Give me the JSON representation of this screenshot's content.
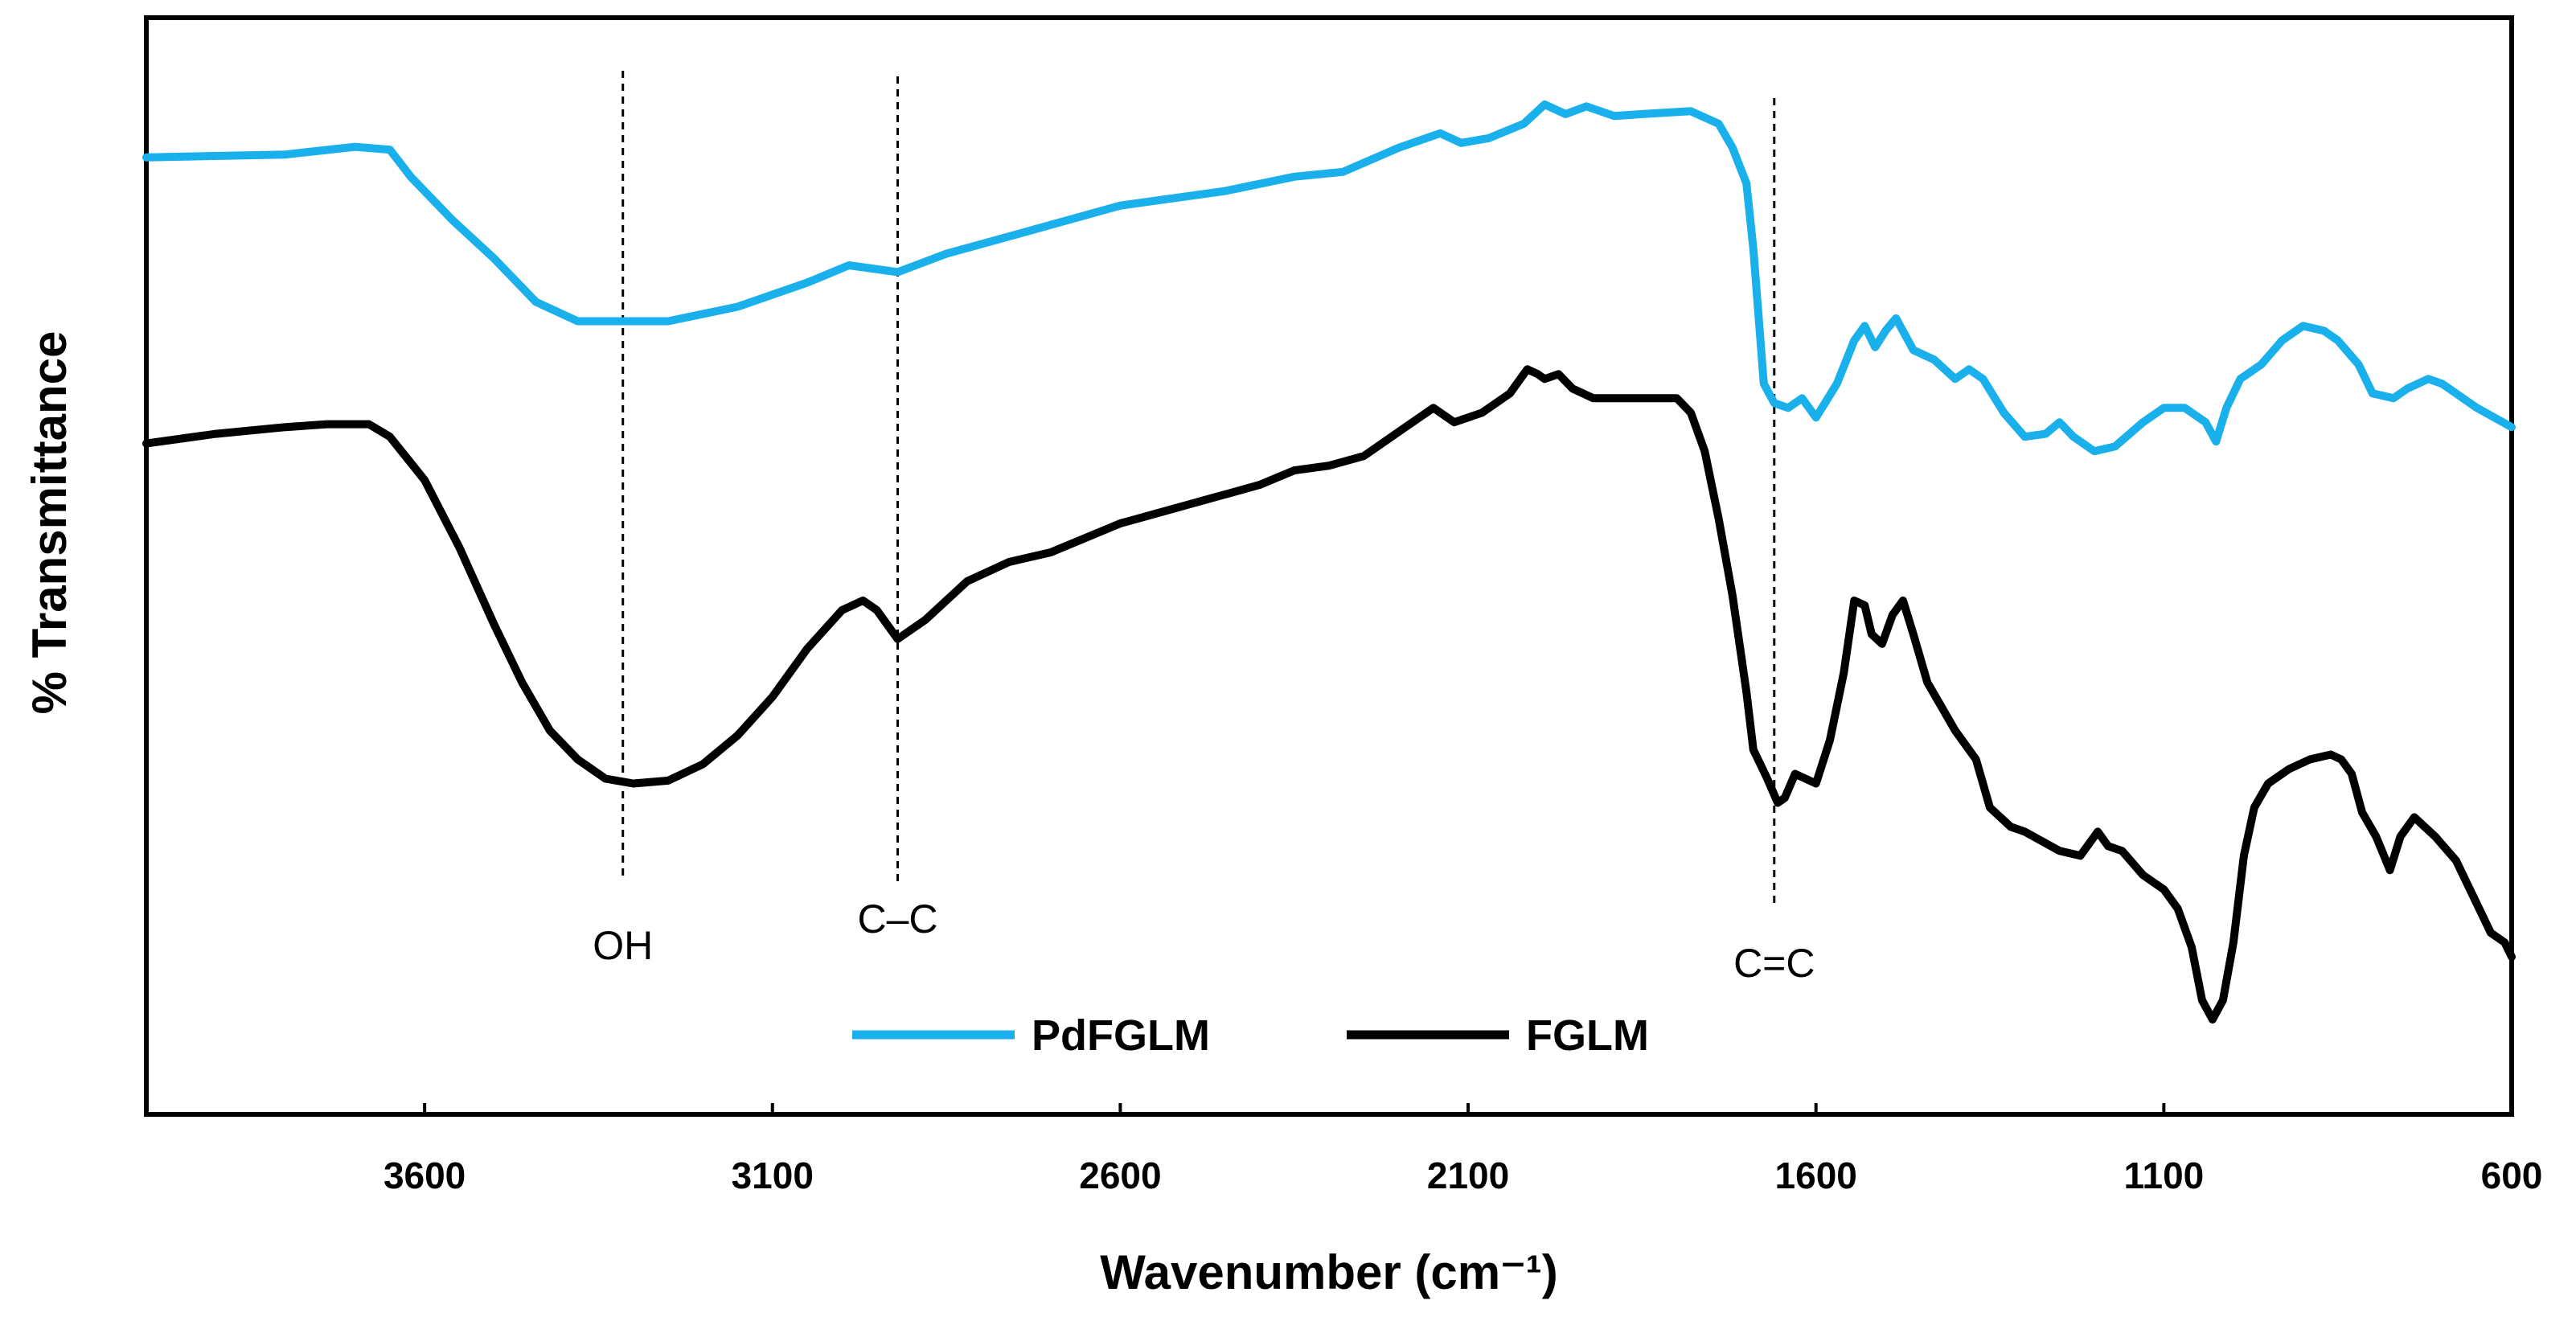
{
  "chart_data": {
    "type": "line",
    "title": "",
    "xlabel": "Wavenumber (cm⁻¹)",
    "ylabel": "% Transmittance",
    "xlim": [
      4000,
      600
    ],
    "x_reversed": true,
    "ylim": [
      0,
      100
    ],
    "y_ticks_shown": false,
    "grid": false,
    "x_ticks": [
      3600,
      3100,
      2600,
      2100,
      1600,
      1100,
      600
    ],
    "x_tick_labels": [
      "3600",
      "3100",
      "2600",
      "2100",
      "1600",
      "1100",
      "600"
    ],
    "legend": {
      "placement": "bottom-center",
      "entries": [
        "PdFGLM",
        "FGLM"
      ]
    },
    "annotations": [
      {
        "label": "OH",
        "x": 3315
      },
      {
        "label": "C–C",
        "x": 2920
      },
      {
        "label": "C=C",
        "x": 1660
      }
    ],
    "series": [
      {
        "name": "PdFGLM",
        "color": "#1ab0ec",
        "points": [
          [
            4000,
            89.5
          ],
          [
            3800,
            89.8
          ],
          [
            3700,
            90.6
          ],
          [
            3650,
            90.3
          ],
          [
            3620,
            87.5
          ],
          [
            3560,
            83
          ],
          [
            3500,
            79
          ],
          [
            3440,
            74.5
          ],
          [
            3380,
            72.5
          ],
          [
            3300,
            72.5
          ],
          [
            3250,
            72.5
          ],
          [
            3150,
            74
          ],
          [
            3050,
            76.5
          ],
          [
            2990,
            78.3
          ],
          [
            2920,
            77.6
          ],
          [
            2850,
            79.5
          ],
          [
            2700,
            82.5
          ],
          [
            2600,
            84.5
          ],
          [
            2450,
            86
          ],
          [
            2350,
            87.5
          ],
          [
            2280,
            88
          ],
          [
            2200,
            90.5
          ],
          [
            2140,
            92
          ],
          [
            2110,
            91
          ],
          [
            2070,
            91.5
          ],
          [
            2020,
            93
          ],
          [
            1990,
            95
          ],
          [
            1960,
            94
          ],
          [
            1930,
            94.8
          ],
          [
            1890,
            93.8
          ],
          [
            1850,
            94
          ],
          [
            1780,
            94.3
          ],
          [
            1740,
            93
          ],
          [
            1720,
            90.5
          ],
          [
            1700,
            86.8
          ],
          [
            1690,
            80
          ],
          [
            1675,
            66
          ],
          [
            1660,
            64
          ],
          [
            1640,
            63.5
          ],
          [
            1620,
            64.5
          ],
          [
            1600,
            62.5
          ],
          [
            1570,
            66
          ],
          [
            1545,
            70.5
          ],
          [
            1530,
            72
          ],
          [
            1515,
            69.8
          ],
          [
            1500,
            71.5
          ],
          [
            1485,
            72.8
          ],
          [
            1460,
            69.5
          ],
          [
            1430,
            68.5
          ],
          [
            1400,
            66.5
          ],
          [
            1380,
            67.5
          ],
          [
            1360,
            66.5
          ],
          [
            1330,
            63
          ],
          [
            1300,
            60.5
          ],
          [
            1270,
            60.8
          ],
          [
            1250,
            62
          ],
          [
            1230,
            60.5
          ],
          [
            1200,
            59
          ],
          [
            1170,
            59.5
          ],
          [
            1130,
            62
          ],
          [
            1100,
            63.5
          ],
          [
            1070,
            63.5
          ],
          [
            1040,
            62
          ],
          [
            1025,
            60
          ],
          [
            1010,
            63.5
          ],
          [
            990,
            66.5
          ],
          [
            960,
            68
          ],
          [
            930,
            70.5
          ],
          [
            900,
            72
          ],
          [
            870,
            71.5
          ],
          [
            850,
            70.5
          ],
          [
            820,
            68
          ],
          [
            800,
            65
          ],
          [
            770,
            64.5
          ],
          [
            750,
            65.5
          ],
          [
            720,
            66.5
          ],
          [
            700,
            66
          ],
          [
            650,
            63.5
          ],
          [
            600,
            61.5
          ]
        ]
      },
      {
        "name": "FGLM",
        "color": "#000000",
        "points": [
          [
            4000,
            59.8
          ],
          [
            3900,
            60.8
          ],
          [
            3800,
            61.5
          ],
          [
            3740,
            61.8
          ],
          [
            3680,
            61.8
          ],
          [
            3650,
            60.5
          ],
          [
            3600,
            56
          ],
          [
            3550,
            49
          ],
          [
            3500,
            41
          ],
          [
            3460,
            35
          ],
          [
            3420,
            30
          ],
          [
            3380,
            27
          ],
          [
            3340,
            25
          ],
          [
            3300,
            24.5
          ],
          [
            3250,
            24.8
          ],
          [
            3200,
            26.5
          ],
          [
            3150,
            29.5
          ],
          [
            3100,
            33.5
          ],
          [
            3050,
            38.5
          ],
          [
            3000,
            42.5
          ],
          [
            2970,
            43.5
          ],
          [
            2950,
            42.5
          ],
          [
            2920,
            39.5
          ],
          [
            2880,
            41.5
          ],
          [
            2820,
            45.5
          ],
          [
            2760,
            47.5
          ],
          [
            2700,
            48.5
          ],
          [
            2600,
            51.5
          ],
          [
            2500,
            53.5
          ],
          [
            2400,
            55.5
          ],
          [
            2350,
            57
          ],
          [
            2300,
            57.5
          ],
          [
            2250,
            58.5
          ],
          [
            2200,
            61
          ],
          [
            2150,
            63.5
          ],
          [
            2120,
            62
          ],
          [
            2080,
            63
          ],
          [
            2040,
            65
          ],
          [
            2015,
            67.5
          ],
          [
            2000,
            67
          ],
          [
            1990,
            66.5
          ],
          [
            1970,
            67
          ],
          [
            1950,
            65.5
          ],
          [
            1920,
            64.5
          ],
          [
            1880,
            64.5
          ],
          [
            1830,
            64.5
          ],
          [
            1800,
            64.5
          ],
          [
            1780,
            63
          ],
          [
            1760,
            59
          ],
          [
            1740,
            52
          ],
          [
            1720,
            44
          ],
          [
            1700,
            34
          ],
          [
            1690,
            28
          ],
          [
            1680,
            26.5
          ],
          [
            1670,
            25
          ],
          [
            1655,
            22.5
          ],
          [
            1645,
            23
          ],
          [
            1630,
            25.5
          ],
          [
            1615,
            25
          ],
          [
            1600,
            24.5
          ],
          [
            1580,
            29
          ],
          [
            1560,
            36
          ],
          [
            1545,
            43.5
          ],
          [
            1530,
            43
          ],
          [
            1520,
            40
          ],
          [
            1505,
            39
          ],
          [
            1490,
            42
          ],
          [
            1475,
            43.5
          ],
          [
            1460,
            40
          ],
          [
            1440,
            35
          ],
          [
            1400,
            30
          ],
          [
            1370,
            27
          ],
          [
            1350,
            22
          ],
          [
            1320,
            20
          ],
          [
            1300,
            19.5
          ],
          [
            1250,
            17.5
          ],
          [
            1220,
            17
          ],
          [
            1195,
            19.5
          ],
          [
            1180,
            18
          ],
          [
            1160,
            17.5
          ],
          [
            1130,
            15
          ],
          [
            1100,
            13.5
          ],
          [
            1080,
            11.5
          ],
          [
            1060,
            7.5
          ],
          [
            1045,
            2
          ],
          [
            1030,
            0
          ],
          [
            1015,
            2
          ],
          [
            1000,
            8
          ],
          [
            985,
            17
          ],
          [
            970,
            22
          ],
          [
            950,
            24.5
          ],
          [
            920,
            26
          ],
          [
            890,
            27
          ],
          [
            860,
            27.5
          ],
          [
            845,
            27
          ],
          [
            830,
            25.5
          ],
          [
            815,
            21.5
          ],
          [
            795,
            19
          ],
          [
            775,
            15.5
          ],
          [
            760,
            19
          ],
          [
            740,
            21
          ],
          [
            710,
            19
          ],
          [
            680,
            16.5
          ],
          [
            650,
            12
          ],
          [
            630,
            9
          ],
          [
            610,
            8
          ],
          [
            600,
            6.5
          ]
        ]
      }
    ]
  }
}
